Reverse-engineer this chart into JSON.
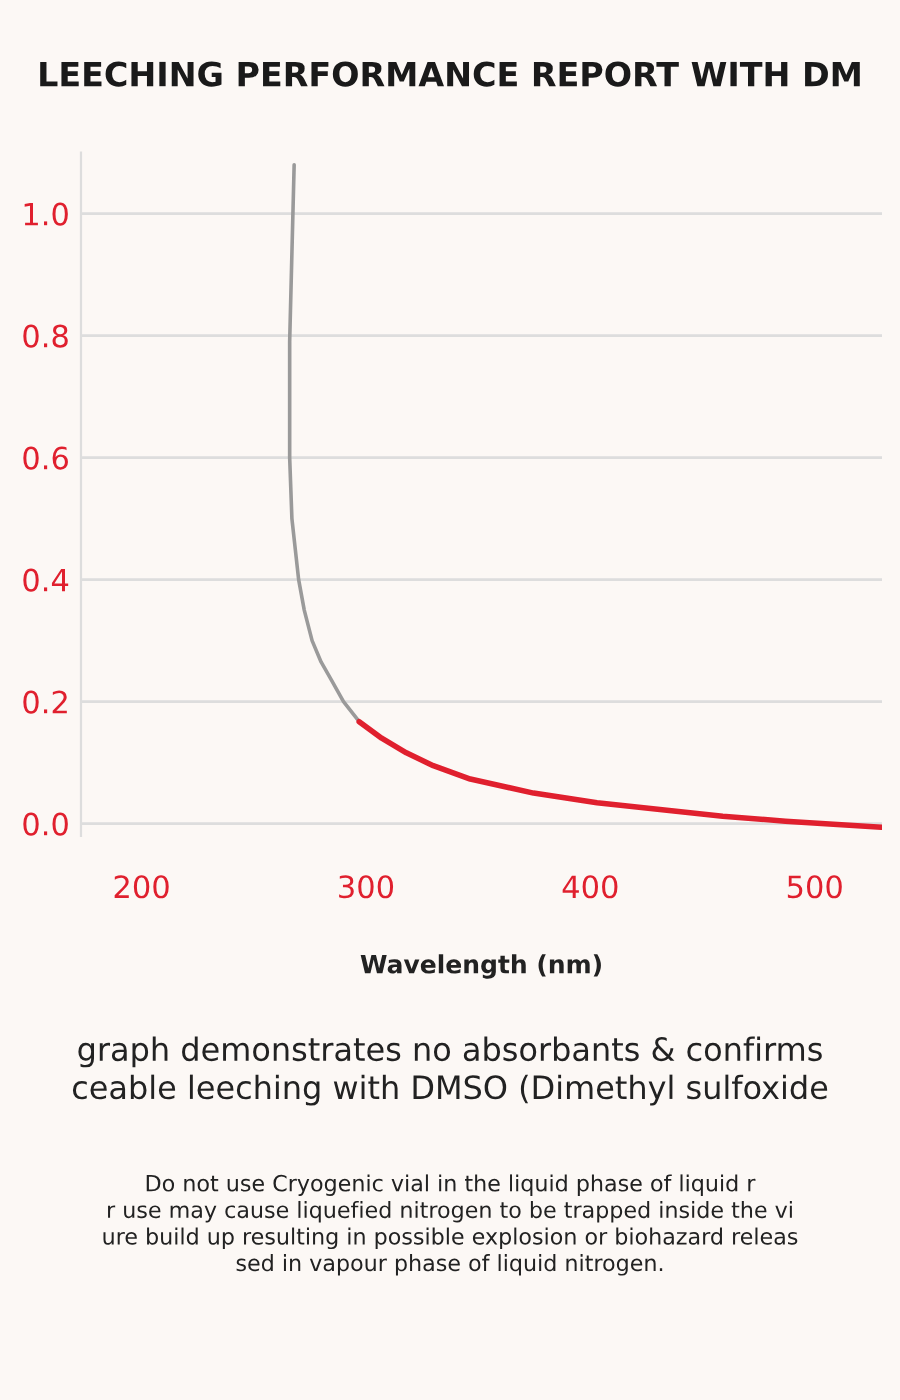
{
  "chart_data": {
    "type": "line",
    "title": "LEECHING PERFORMANCE REPORT WITH DM",
    "xlabel": "Wavelength (nm)",
    "series": [
      {
        "color": "#9a9a9a",
        "x": [
          268,
          266,
          266,
          267,
          270,
          272.5,
          276,
          280,
          284.5,
          290,
          297
        ],
        "values": [
          1.08,
          0.79,
          0.6,
          0.5,
          0.4,
          0.35,
          0.3,
          0.265,
          0.236,
          0.2,
          0.167
        ]
      },
      {
        "color": "#e0202e",
        "x": [
          297,
          307,
          318,
          330,
          346.5,
          374.7,
          403,
          431,
          459,
          487,
          529.7
        ],
        "values": [
          0.167,
          0.14,
          0.116,
          0.095,
          0.073,
          0.05,
          0.034,
          0.023,
          0.012,
          0.004,
          -0.006
        ]
      }
    ],
    "xlim": [
      173,
      530
    ],
    "xticks": [
      200,
      300,
      400,
      500
    ],
    "ylim": [
      -0.02,
      1.1
    ],
    "yticks": [
      {
        "value": 0.0,
        "label": "0.0"
      },
      {
        "value": 0.2,
        "label": "0.2"
      },
      {
        "value": 0.4,
        "label": "0.4"
      },
      {
        "value": 0.6,
        "label": "0.6"
      },
      {
        "value": 0.8,
        "label": "0.8"
      },
      {
        "value": 1.0,
        "label": "1.0"
      }
    ],
    "grid": "y",
    "marker": "none",
    "line_style": "solid",
    "legend": false,
    "annotations": [
      "graph demonstrates no absorbants & confirms\nceable leeching with DMSO (Dimethyl sulfoxide",
      "Do not use Cryogenic vial in the liquid phase of liquid r\nr use may cause liquefied nitrogen to be trapped inside the vi\nure build up resulting in possible explosion or biohazard releas\nsed in vapour phase of liquid nitrogen."
    ]
  }
}
